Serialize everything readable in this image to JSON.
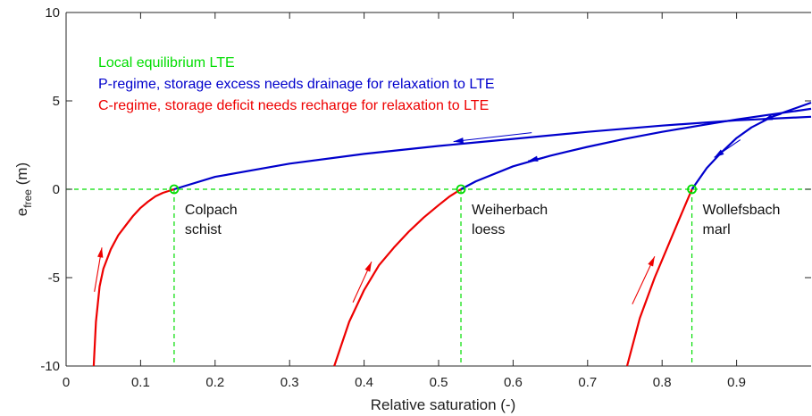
{
  "chart_data": {
    "type": "line",
    "xlabel": "Relative saturation (-)",
    "ylabel_main": "e",
    "ylabel_sub": "free",
    "ylabel_unit": " (m)",
    "xlim": [
      0,
      1
    ],
    "ylim": [
      -10,
      10
    ],
    "xticks": [
      0,
      0.1,
      0.2,
      0.3,
      0.4,
      0.5,
      0.6,
      0.7,
      0.8,
      0.9
    ],
    "xtick_labels": [
      "0",
      "0.1",
      "0.2",
      "0.3",
      "0.4",
      "0.5",
      "0.6",
      "0.7",
      "0.8",
      "0.9"
    ],
    "yticks": [
      -10,
      -5,
      0,
      5,
      10
    ],
    "ytick_labels": [
      "-10",
      "-5",
      "0",
      "5",
      "10"
    ],
    "grid": false,
    "colors": {
      "lte": "#00dd00",
      "p_regime": "#0000cc",
      "c_regime": "#ee0000"
    },
    "legend_texts": [
      {
        "text": "Local equilibrium LTE",
        "color": "#00dd00"
      },
      {
        "text": "P-regime, storage excess needs drainage for relaxation to LTE",
        "color": "#0000cc"
      },
      {
        "text": "C-regime, storage deficit needs recharge for relaxation to LTE",
        "color": "#ee0000"
      }
    ],
    "series": [
      {
        "lte_x": 0.145,
        "labels": [
          "Colpach",
          "schist"
        ],
        "c_regime": [
          [
            0.037,
            -10
          ],
          [
            0.04,
            -7.5
          ],
          [
            0.045,
            -5.5
          ],
          [
            0.05,
            -4.5
          ],
          [
            0.06,
            -3.4
          ],
          [
            0.07,
            -2.6
          ],
          [
            0.08,
            -2.05
          ],
          [
            0.09,
            -1.5
          ],
          [
            0.1,
            -1.05
          ],
          [
            0.11,
            -0.7
          ],
          [
            0.12,
            -0.4
          ],
          [
            0.13,
            -0.2
          ],
          [
            0.145,
            0
          ]
        ],
        "p_regime": [
          [
            0.145,
            0
          ],
          [
            0.2,
            0.7
          ],
          [
            0.3,
            1.45
          ],
          [
            0.4,
            2.0
          ],
          [
            0.5,
            2.45
          ],
          [
            0.6,
            2.85
          ],
          [
            0.7,
            3.25
          ],
          [
            0.8,
            3.6
          ],
          [
            0.9,
            3.9
          ],
          [
            1.0,
            4.1
          ]
        ]
      },
      {
        "lte_x": 0.53,
        "labels": [
          "Weiherbach",
          "loess"
        ],
        "c_regime": [
          [
            0.36,
            -10
          ],
          [
            0.38,
            -7.5
          ],
          [
            0.4,
            -5.7
          ],
          [
            0.42,
            -4.3
          ],
          [
            0.44,
            -3.3
          ],
          [
            0.46,
            -2.4
          ],
          [
            0.48,
            -1.6
          ],
          [
            0.5,
            -0.9
          ],
          [
            0.515,
            -0.4
          ],
          [
            0.53,
            0
          ]
        ],
        "p_regime": [
          [
            0.53,
            0
          ],
          [
            0.55,
            0.45
          ],
          [
            0.6,
            1.3
          ],
          [
            0.65,
            1.9
          ],
          [
            0.7,
            2.4
          ],
          [
            0.75,
            2.85
          ],
          [
            0.8,
            3.25
          ],
          [
            0.85,
            3.6
          ],
          [
            0.9,
            3.95
          ],
          [
            0.95,
            4.25
          ],
          [
            1.0,
            4.55
          ]
        ]
      },
      {
        "lte_x": 0.84,
        "labels": [
          "Wollefsbach",
          "marl"
        ],
        "c_regime": [
          [
            0.753,
            -10
          ],
          [
            0.77,
            -7.3
          ],
          [
            0.79,
            -5.0
          ],
          [
            0.81,
            -3.0
          ],
          [
            0.825,
            -1.5
          ],
          [
            0.84,
            0
          ]
        ],
        "p_regime": [
          [
            0.84,
            0
          ],
          [
            0.86,
            1.2
          ],
          [
            0.88,
            2.1
          ],
          [
            0.9,
            2.9
          ],
          [
            0.92,
            3.5
          ],
          [
            0.95,
            4.15
          ],
          [
            1.0,
            4.9
          ]
        ]
      }
    ],
    "arrows": [
      {
        "color": "#0000cc",
        "from": [
          0.625,
          3.2
        ],
        "to": [
          0.52,
          2.7
        ]
      },
      {
        "color": "#0000cc",
        "from": [
          0.705,
          2.45
        ],
        "to": [
          0.62,
          1.6
        ]
      },
      {
        "color": "#0000cc",
        "from": [
          0.905,
          2.8
        ],
        "to": [
          0.87,
          1.8
        ]
      },
      {
        "color": "#0000cc",
        "from": [
          0.96,
          4.25
        ],
        "to": [
          0.935,
          3.9
        ]
      },
      {
        "color": "#ee0000",
        "from": [
          0.038,
          -5.8
        ],
        "to": [
          0.048,
          -3.3
        ]
      },
      {
        "color": "#ee0000",
        "from": [
          0.385,
          -6.4
        ],
        "to": [
          0.41,
          -4.1
        ]
      },
      {
        "color": "#ee0000",
        "from": [
          0.76,
          -6.5
        ],
        "to": [
          0.79,
          -3.8
        ]
      }
    ]
  }
}
